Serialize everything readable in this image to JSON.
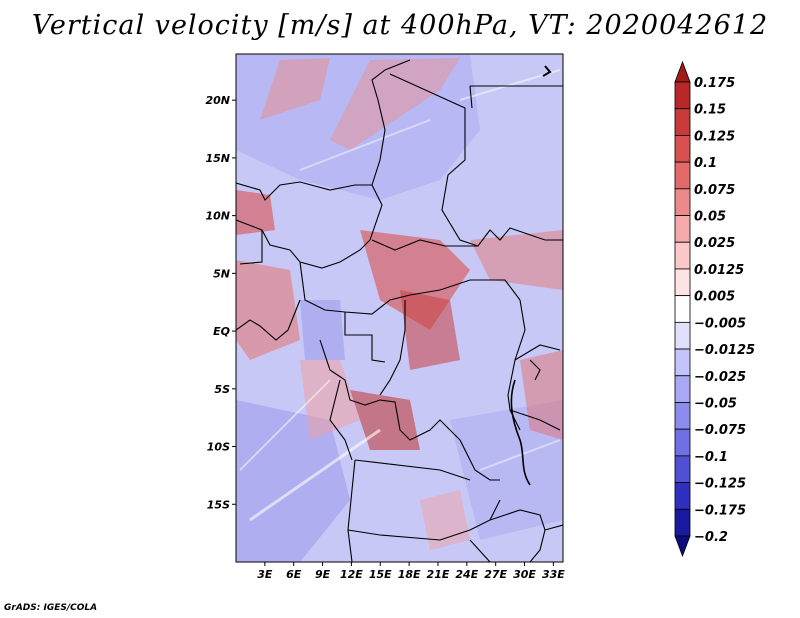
{
  "title": "Vertical velocity [m/s] at 400hPa, VT: 2020042612",
  "credit": "GrADS: IGES/COLA",
  "map": {
    "region": "Central Africa",
    "lat_labels": [
      "20N",
      "15N",
      "10N",
      "5N",
      "EQ",
      "5S",
      "10S",
      "15S"
    ],
    "lat_values": [
      20,
      15,
      10,
      5,
      0,
      -5,
      -10,
      -15
    ],
    "lon_labels": [
      "3E",
      "6E",
      "9E",
      "12E",
      "15E",
      "18E",
      "21E",
      "24E",
      "27E",
      "30E",
      "33E"
    ],
    "lon_values": [
      3,
      6,
      9,
      12,
      15,
      18,
      21,
      24,
      27,
      30,
      33
    ],
    "lon_range": [
      0,
      34
    ],
    "lat_range": [
      -20,
      24
    ]
  },
  "colorbar": {
    "labels": [
      "0.175",
      "0.15",
      "0.125",
      "0.1",
      "0.075",
      "0.05",
      "0.025",
      "0.0125",
      "0.005",
      "−0.005",
      "−0.0125",
      "−0.025",
      "−0.05",
      "−0.075",
      "−0.1",
      "−0.125",
      "−0.175",
      "−0.2"
    ],
    "colors": [
      "#a01a1a",
      "#b82828",
      "#c83a3a",
      "#d85050",
      "#e46a6a",
      "#ec8a8a",
      "#f4aaaa",
      "#fac8c8",
      "#fde4e4",
      "#ffffff",
      "#e0e0fc",
      "#c4c4fa",
      "#a8a8f4",
      "#8c8cee",
      "#7070e4",
      "#5050d4",
      "#3030c0",
      "#1a1aa0",
      "#0c0c80"
    ]
  }
}
